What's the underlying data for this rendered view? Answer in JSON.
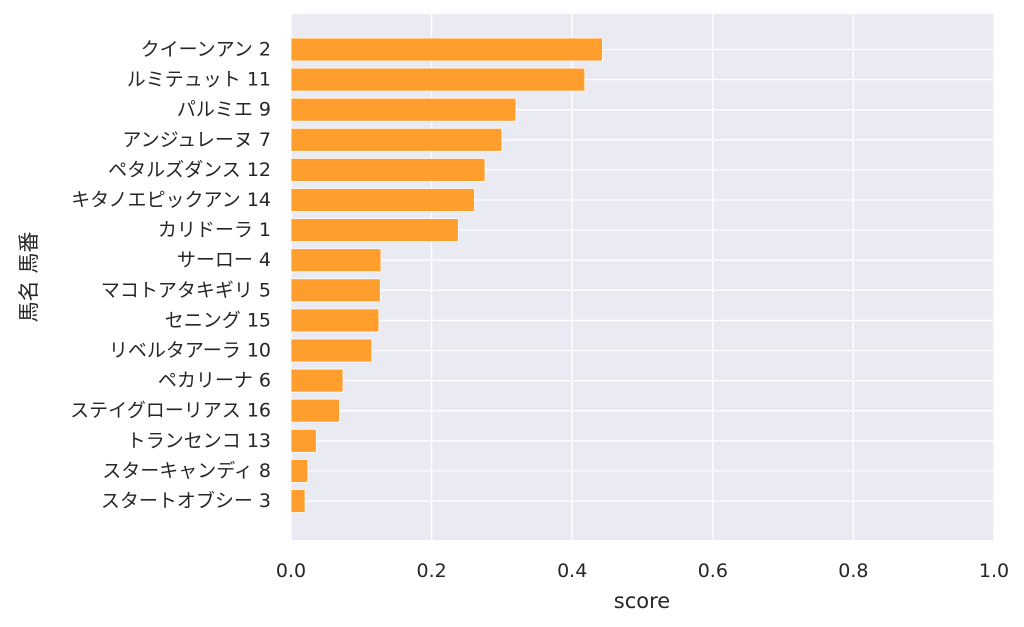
{
  "chart_data": {
    "type": "bar",
    "orientation": "horizontal",
    "title": "",
    "xlabel": "score",
    "ylabel": "馬名 馬番",
    "xlim": [
      0.0,
      1.0
    ],
    "xticks": [
      "0.0",
      "0.2",
      "0.4",
      "0.6",
      "0.8",
      "1.0"
    ],
    "grid": true,
    "bar_color": "#ff9e2c",
    "background_color": "#eaeaf2",
    "categories": [
      "クイーンアン 2",
      "ルミテュット 11",
      "パルミエ 9",
      "アンジュレーヌ 7",
      "ペタルズダンス 12",
      "キタノエピックアン 14",
      "カリドーラ 1",
      "サーロー 4",
      "マコトアタキギリ 5",
      "セニング 15",
      "リベルタアーラ 10",
      "ペカリーナ 6",
      "ステイグローリアス 16",
      "トランセンコ 13",
      "スターキャンディ 8",
      "スタートオブシー 3"
    ],
    "values": [
      0.443,
      0.418,
      0.32,
      0.3,
      0.276,
      0.261,
      0.238,
      0.128,
      0.127,
      0.125,
      0.115,
      0.074,
      0.069,
      0.036,
      0.024,
      0.02
    ]
  }
}
